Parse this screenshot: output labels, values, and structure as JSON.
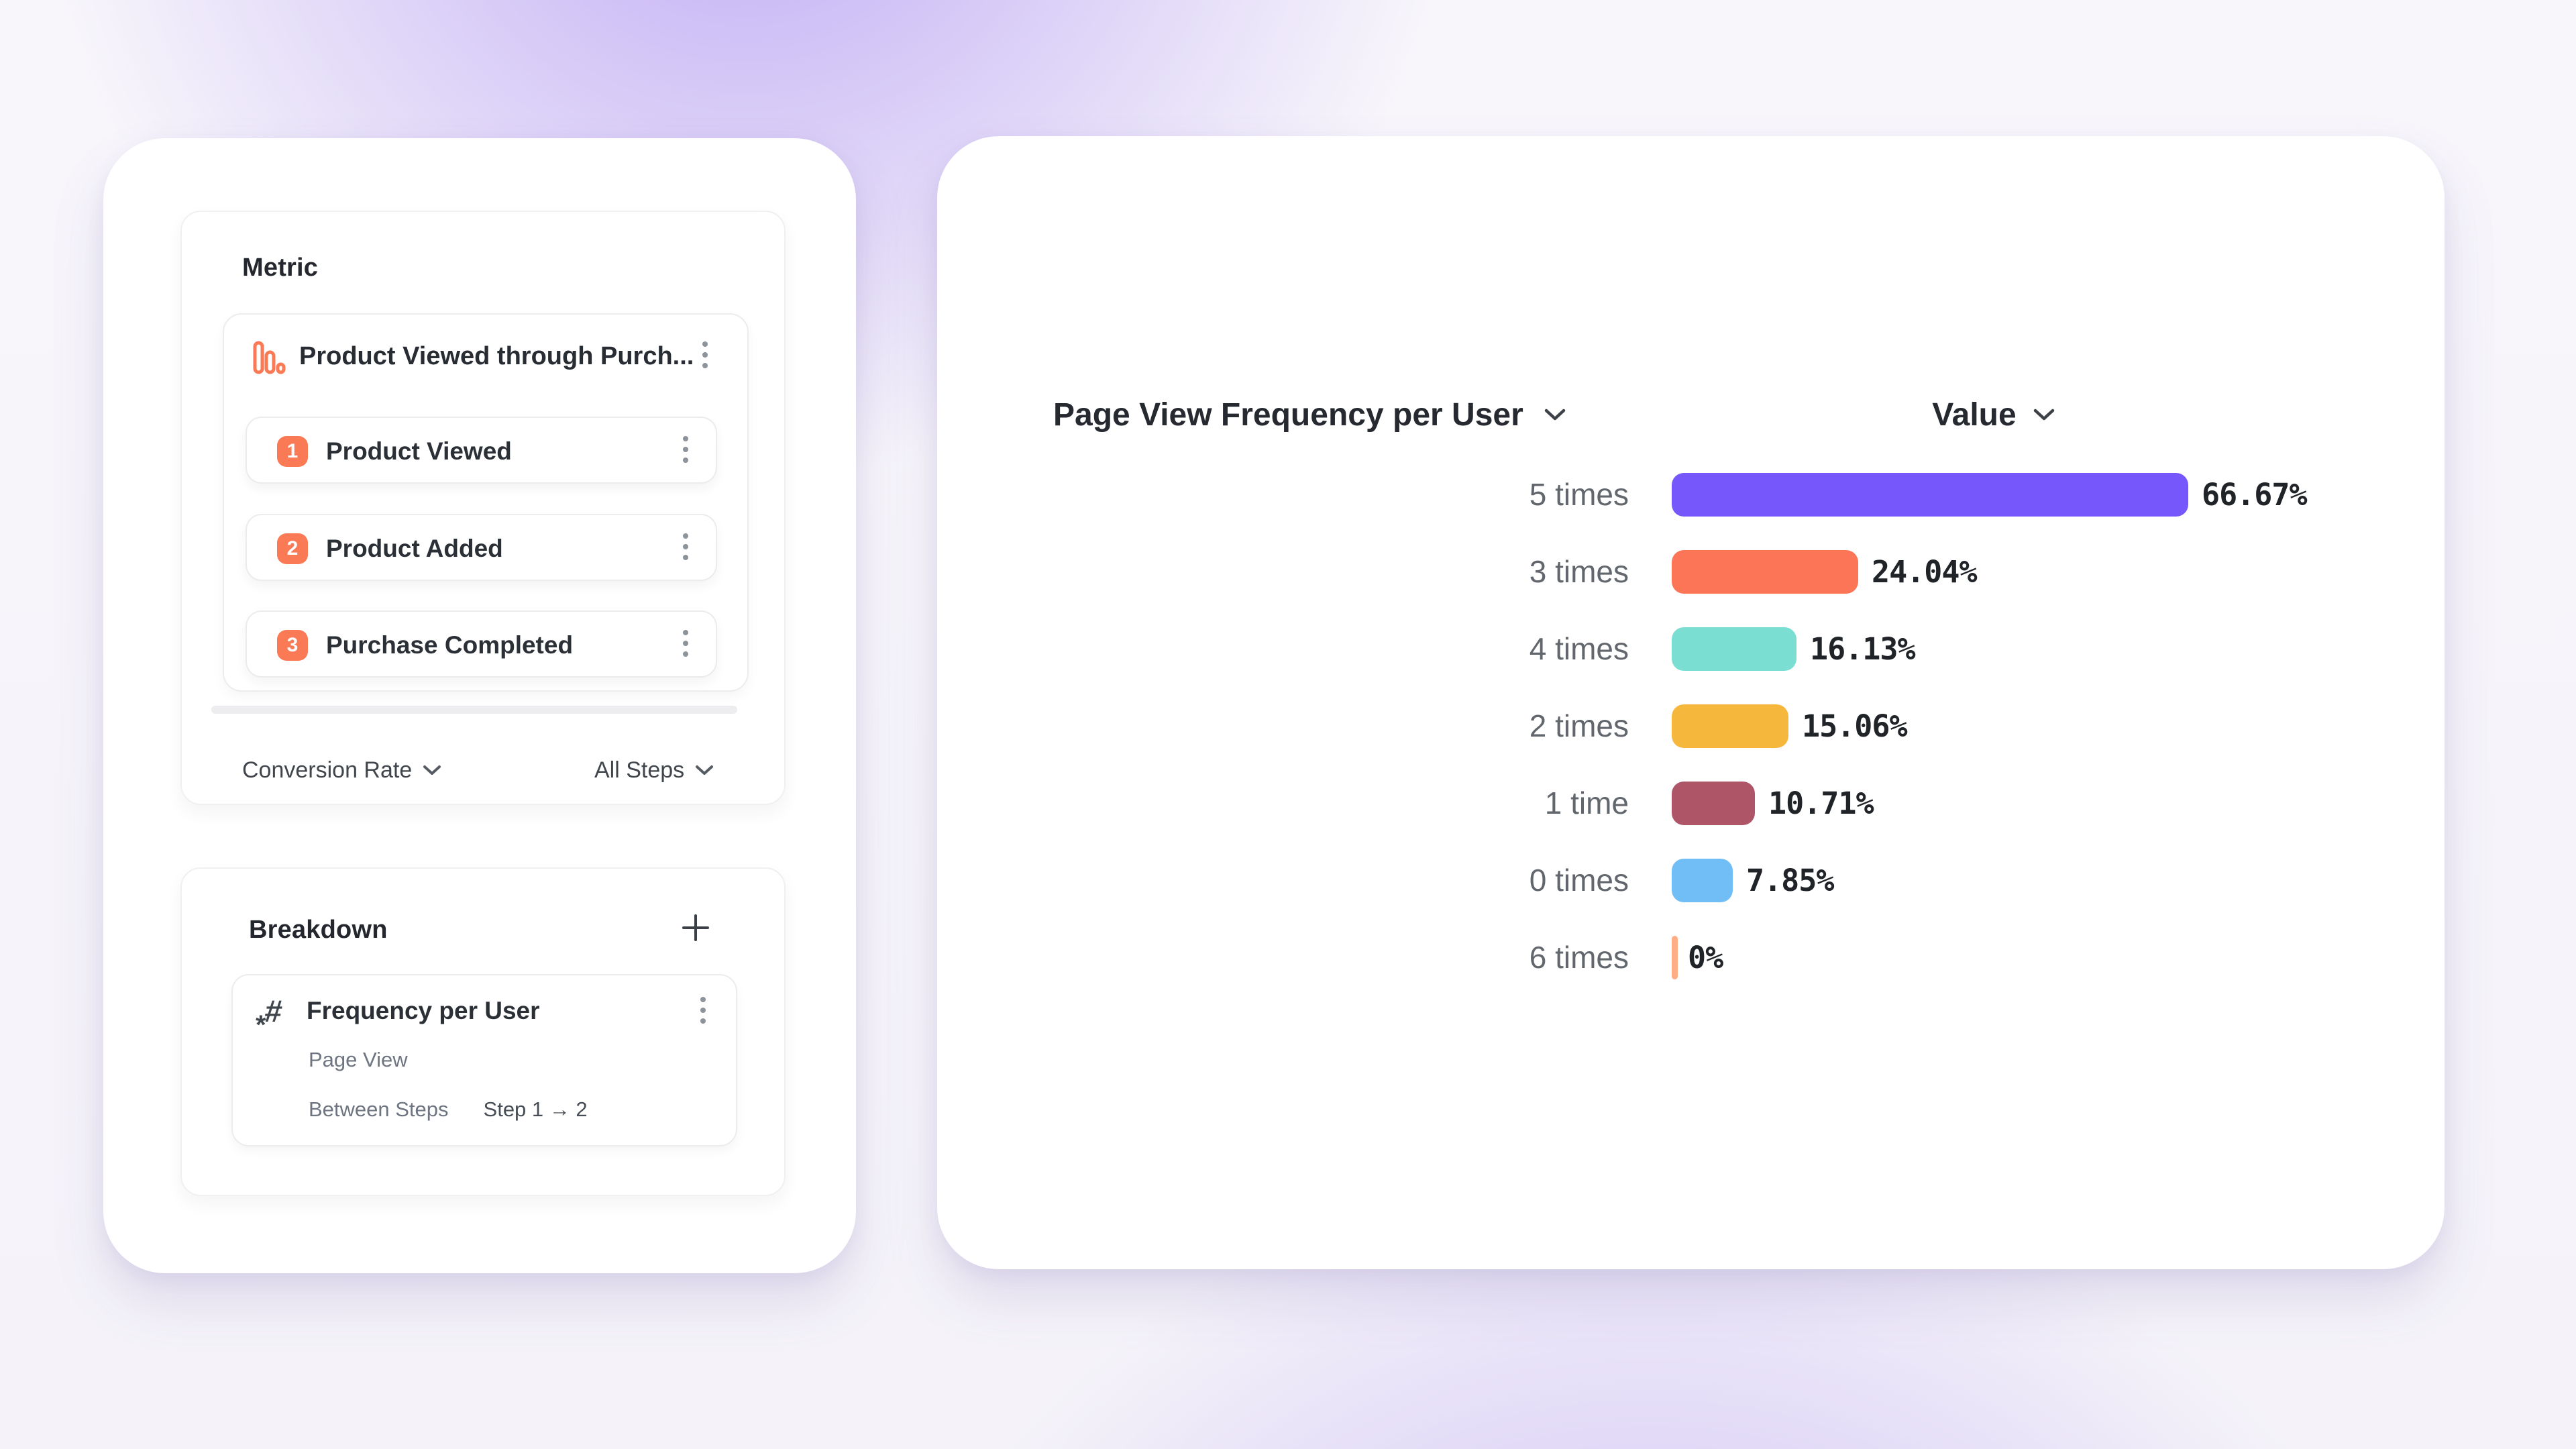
{
  "metric_panel": {
    "title": "Metric",
    "funnel": {
      "title": "Product Viewed through Purch...",
      "steps": [
        {
          "num": "1",
          "label": "Product Viewed"
        },
        {
          "num": "2",
          "label": "Product Added"
        },
        {
          "num": "3",
          "label": "Purchase Completed"
        }
      ]
    },
    "footer": {
      "left_dropdown": "Conversion Rate",
      "right_dropdown": "All Steps"
    }
  },
  "breakdown_panel": {
    "title": "Breakdown",
    "item": {
      "title": "Frequency per User",
      "event": "Page View",
      "between_steps_label": "Between Steps",
      "between_steps_value": "Step 1 → 2"
    }
  },
  "chart_panel": {
    "title": "Page View Frequency per User",
    "value_header": "Value"
  },
  "chart_data": {
    "type": "bar",
    "orientation": "horizontal",
    "title": "Page View Frequency per User",
    "series_label": "Value",
    "categories": [
      "5 times",
      "3 times",
      "4 times",
      "2 times",
      "1 time",
      "0 times",
      "6 times"
    ],
    "values": [
      66.67,
      24.04,
      16.13,
      15.06,
      10.71,
      7.85,
      0
    ],
    "value_labels": [
      "66.67%",
      "24.04%",
      "16.13%",
      "15.06%",
      "10.71%",
      "7.85%",
      "0%"
    ],
    "bar_colors": [
      "#7657FC",
      "#FC7557",
      "#7ADFD2",
      "#F6B83C",
      "#AF5568",
      "#70BEF5",
      "#FFAD85"
    ],
    "xlim": [
      0,
      100
    ],
    "grid": false,
    "legend": false,
    "accent_colors": {
      "step_badge": "#F97A55",
      "funnel_icon": "#F97A55"
    }
  }
}
